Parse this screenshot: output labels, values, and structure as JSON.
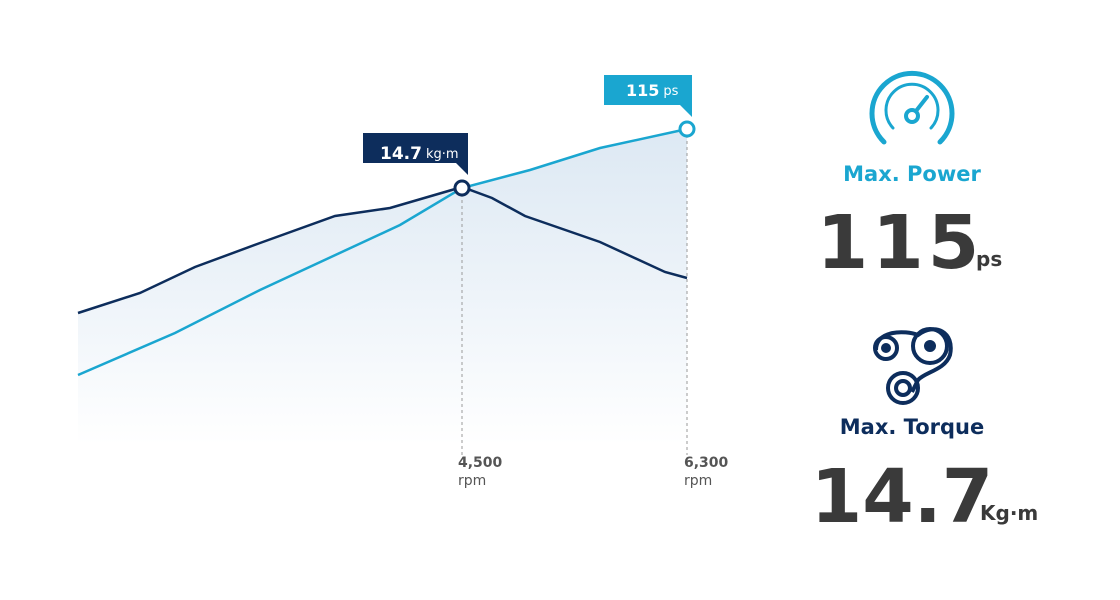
{
  "callouts": {
    "torque": {
      "value": "14.7",
      "unit": "kg·m"
    },
    "power": {
      "value": "115",
      "unit": "ps"
    }
  },
  "rpm_markers": [
    {
      "value": "4,500",
      "unit": "rpm"
    },
    {
      "value": "6,300",
      "unit": "rpm"
    }
  ],
  "specs": [
    {
      "label": "Max. Power",
      "value": "115",
      "unit": "ps"
    },
    {
      "label": "Max. Torque",
      "value": "14.7",
      "unit": "Kg·m"
    }
  ]
}
